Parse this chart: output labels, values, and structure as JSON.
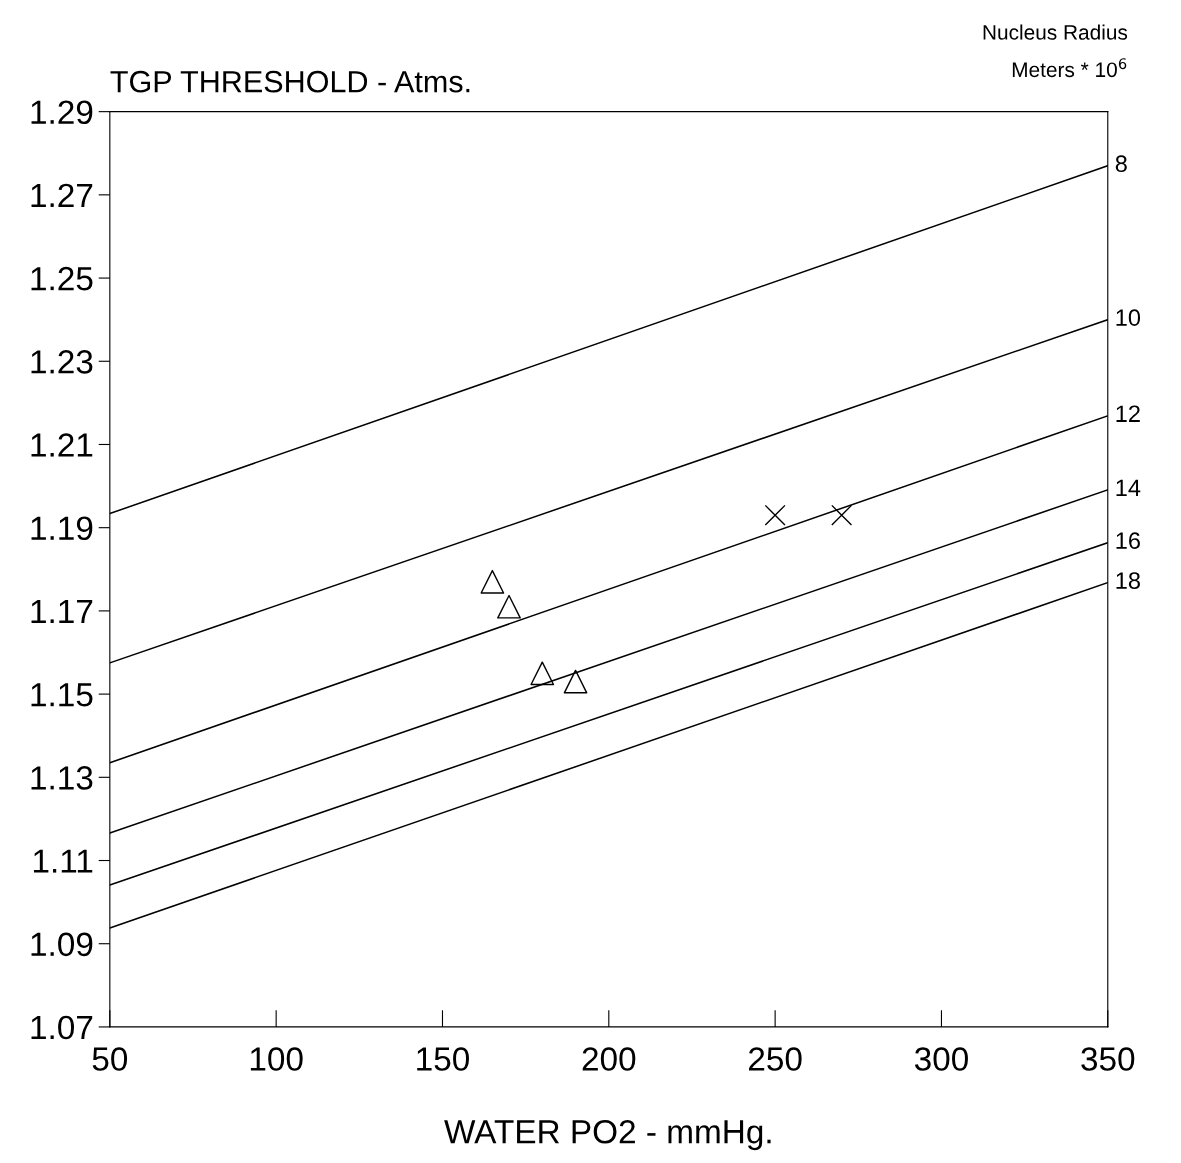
{
  "chart_data": {
    "type": "line",
    "title": "TGP THRESHOLD - Atms.",
    "xlabel": "WATER PO2 - mmHg.",
    "legend_title": "Nucleus Radius\nMeters * 10$^{6}$",
    "xlim": [
      50,
      350
    ],
    "ylim": [
      1.07,
      1.29
    ],
    "xticks": [
      50,
      100,
      150,
      200,
      250,
      300,
      350
    ],
    "yticks": [
      {
        "value": 1.07,
        "label": "1.07"
      },
      {
        "value": 1.09,
        "label": "1.09"
      },
      {
        "value": 1.11,
        "label": "1.11"
      },
      {
        "value": 1.13,
        "label": "1.13"
      },
      {
        "value": 1.15,
        "label": "1.15"
      },
      {
        "value": 1.17,
        "label": "1.17"
      },
      {
        "value": 1.19,
        "label": "1.19"
      },
      {
        "value": 1.21,
        "label": "1.21"
      },
      {
        "value": 1.23,
        "label": "1.23"
      },
      {
        "value": 1.25,
        "label": "1.25"
      },
      {
        "value": 1.27,
        "label": "1.27"
      },
      {
        "value": 1.29,
        "label": "1.29"
      }
    ],
    "grid": false,
    "legend": false,
    "series": [
      {
        "name": "8",
        "color": "#000000",
        "x": [
          50,
          350
        ],
        "values": [
          1.1934,
          1.277
        ]
      },
      {
        "name": "10",
        "color": "#000000",
        "x": [
          50,
          350
        ],
        "values": [
          1.1575,
          1.24
        ]
      },
      {
        "name": "12",
        "color": "#000000",
        "x": [
          50,
          350
        ],
        "values": [
          1.1335,
          1.2169
        ]
      },
      {
        "name": "14",
        "color": "#000000",
        "x": [
          50,
          350
        ],
        "values": [
          1.1166,
          1.1991
        ]
      },
      {
        "name": "16",
        "color": "#000000",
        "x": [
          50,
          350
        ],
        "values": [
          1.1041,
          1.1864
        ]
      },
      {
        "name": "18",
        "color": "#000000",
        "x": [
          50,
          350
        ],
        "values": [
          1.0938,
          1.1768
        ]
      },
      {
        "type": "scatter",
        "marker": "triangle",
        "color": "#000000",
        "x": [
          165,
          170,
          180,
          190
        ],
        "values": [
          1.177,
          1.171,
          1.155,
          1.153
        ]
      },
      {
        "type": "scatter",
        "marker": "cross",
        "color": "#000000",
        "x": [
          250,
          270
        ],
        "values": [
          1.193,
          1.193
        ]
      }
    ]
  }
}
